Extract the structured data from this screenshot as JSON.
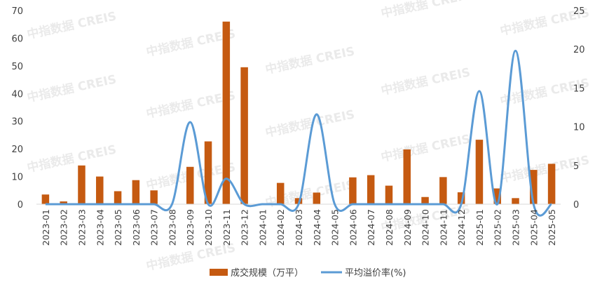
{
  "watermark": "中指数据 CREIS",
  "colors": {
    "bar": "#c55a11",
    "line": "#5b9bd5",
    "axis": "#d9d9d9",
    "text": "#404040"
  },
  "chart_data": {
    "type": "bar",
    "categories": [
      "2023-01",
      "2023-02",
      "2023-03",
      "2023-04",
      "2023-05",
      "2023-06",
      "2023-07",
      "2023-08",
      "2023-09",
      "2023-10",
      "2023-11",
      "2023-12",
      "2024-01",
      "2024-02",
      "2024-03",
      "2024-04",
      "2024-05",
      "2024-06",
      "2024-07",
      "2024-08",
      "2024-09",
      "2024-10",
      "2024-11",
      "2024-12",
      "2025-01",
      "2025-02",
      "2025-03",
      "2025-04",
      "2025-05"
    ],
    "series": [
      {
        "name": "成交规模（万平）",
        "type": "bar",
        "axis": "left",
        "values": [
          3.5,
          1,
          14,
          10,
          4.7,
          8.7,
          5,
          0,
          13.5,
          22.7,
          66,
          49.5,
          0,
          7.7,
          2.2,
          4.2,
          0,
          9.7,
          10.5,
          6.7,
          19.8,
          2.6,
          9.8,
          4.3,
          23.3,
          5.7,
          2.2,
          12.4,
          14.6
        ]
      },
      {
        "name": "平均溢价率(%)",
        "type": "line",
        "axis": "right",
        "values": [
          0,
          0,
          0,
          0,
          0,
          0,
          0,
          0,
          10.6,
          0,
          3.3,
          0,
          0,
          0,
          0,
          11.6,
          0,
          0,
          0,
          0,
          0,
          0,
          0,
          0,
          14.6,
          0,
          19.8,
          0,
          0
        ]
      }
    ],
    "ylim_left": [
      0,
      70
    ],
    "yticks_left": [
      0,
      10,
      20,
      30,
      40,
      50,
      60,
      70
    ],
    "ylim_right": [
      0,
      25
    ],
    "yticks_right": [
      0,
      5,
      10,
      15,
      20,
      25
    ],
    "legend_position": "bottom",
    "grid": false
  }
}
